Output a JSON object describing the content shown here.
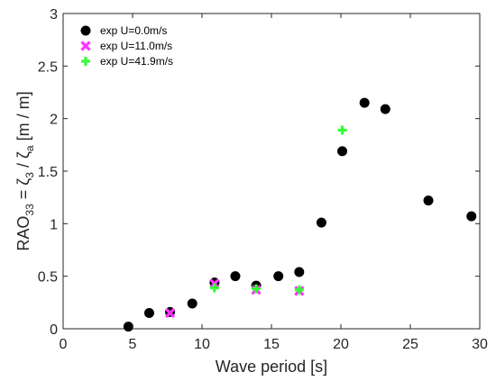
{
  "chart_data": {
    "type": "scatter",
    "title": "",
    "xlabel": "Wave period [s]",
    "ylabel": {
      "prefix": "RAO",
      "prefix_sub": "33",
      "eq": " = ζ",
      "zeta_sub": "3",
      "slash": " / ζ",
      "a_sub": "a",
      "units": "  [m / m]"
    },
    "xlim": [
      0,
      30
    ],
    "ylim": [
      0,
      3
    ],
    "x_ticks": [
      "0",
      "5",
      "10",
      "15",
      "20",
      "25",
      "30"
    ],
    "y_ticks": [
      "0",
      "0.5",
      "1",
      "1.5",
      "2",
      "2.5",
      "3"
    ],
    "grid": false,
    "legend_position": "top-left",
    "series": [
      {
        "name": "exp U=0.0m/s",
        "marker": "circle",
        "color": "#000000",
        "points": [
          {
            "x": 4.7,
            "y": 0.02
          },
          {
            "x": 6.2,
            "y": 0.15
          },
          {
            "x": 7.7,
            "y": 0.16
          },
          {
            "x": 9.3,
            "y": 0.24
          },
          {
            "x": 10.9,
            "y": 0.44
          },
          {
            "x": 12.4,
            "y": 0.5
          },
          {
            "x": 13.9,
            "y": 0.41
          },
          {
            "x": 15.5,
            "y": 0.5
          },
          {
            "x": 17.0,
            "y": 0.54
          },
          {
            "x": 18.6,
            "y": 1.01
          },
          {
            "x": 20.1,
            "y": 1.69
          },
          {
            "x": 21.7,
            "y": 2.15
          },
          {
            "x": 23.2,
            "y": 2.09
          },
          {
            "x": 26.3,
            "y": 1.22
          },
          {
            "x": 29.4,
            "y": 1.07
          }
        ]
      },
      {
        "name": "exp U=11.0m/s",
        "marker": "x",
        "color": "#ff33ff",
        "points": [
          {
            "x": 7.7,
            "y": 0.15
          },
          {
            "x": 10.9,
            "y": 0.43
          },
          {
            "x": 13.9,
            "y": 0.37
          },
          {
            "x": 17.0,
            "y": 0.36
          }
        ]
      },
      {
        "name": "exp U=41.9m/s",
        "marker": "plus",
        "color": "#33ff33",
        "points": [
          {
            "x": 10.9,
            "y": 0.39
          },
          {
            "x": 13.9,
            "y": 0.38
          },
          {
            "x": 17.0,
            "y": 0.37
          },
          {
            "x": 20.1,
            "y": 1.89
          }
        ]
      }
    ]
  }
}
